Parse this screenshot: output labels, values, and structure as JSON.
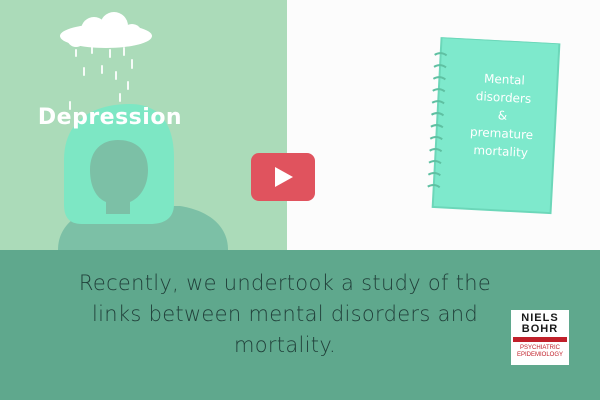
{
  "video": {
    "scene_left_label": "Depression",
    "notebook_title": "Mental\ndisorders\n&\npremature\nmortality",
    "caption": "Recently, we undertook a study of the links between mental disorders and mortality.",
    "play_button_icon": "play-icon"
  },
  "logo": {
    "line1": "NIELS",
    "line2": "BOHR",
    "subtitle": "PSYCHIATRIC\nEPIDEMIOLOGY"
  },
  "colors": {
    "left_panel": "#abdbb9",
    "band": "#5fa88d",
    "notebook": "#7ee9cc",
    "play_button": "#e0535e",
    "logo_red": "#c0202a"
  }
}
